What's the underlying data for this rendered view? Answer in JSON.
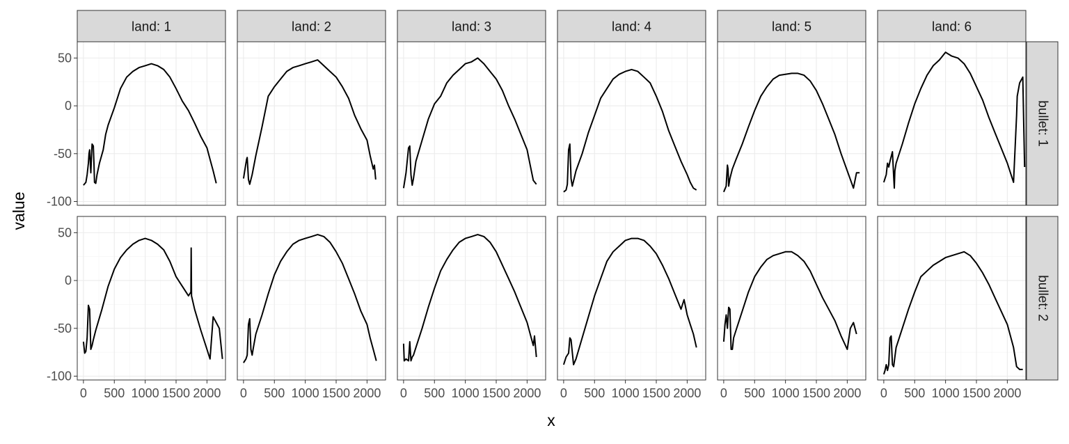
{
  "chart_data": {
    "type": "line",
    "facet": {
      "cols": [
        "land: 1",
        "land: 2",
        "land: 3",
        "land: 4",
        "land: 5",
        "land: 6"
      ],
      "rows": [
        "bullet: 1",
        "bullet: 2"
      ]
    },
    "xlabel": "x",
    "ylabel": "value",
    "xticks": [
      0,
      500,
      1000,
      1500,
      2000
    ],
    "xtick_labels": [
      "0",
      "500",
      "1000",
      "1500",
      "2000"
    ],
    "yticks": [
      -100,
      -50,
      0,
      50
    ],
    "ytick_labels": [
      "-100",
      "-50",
      "0",
      "50"
    ],
    "xlim": [
      -100,
      2300
    ],
    "ylim": [
      -104,
      67
    ],
    "grid": true,
    "panels": [
      {
        "row": 0,
        "col": 0,
        "x": [
          0,
          40,
          60,
          80,
          90,
          100,
          120,
          140,
          160,
          170,
          180,
          200,
          220,
          260,
          320,
          360,
          400,
          500,
          600,
          700,
          800,
          900,
          1000,
          1100,
          1200,
          1300,
          1400,
          1500,
          1600,
          1700,
          1800,
          1900,
          2000,
          2050,
          2100,
          2150
        ],
        "y": [
          -83,
          -80,
          -72,
          -60,
          -50,
          -46,
          -70,
          -40,
          -42,
          -60,
          -80,
          -81,
          -72,
          -60,
          -46,
          -30,
          -20,
          -2,
          18,
          30,
          36,
          40,
          42,
          44,
          42,
          38,
          30,
          18,
          5,
          -5,
          -18,
          -32,
          -44,
          -56,
          -68,
          -81
        ]
      },
      {
        "row": 0,
        "col": 1,
        "x": [
          0,
          40,
          50,
          60,
          80,
          100,
          140,
          200,
          300,
          400,
          500,
          600,
          700,
          800,
          900,
          1000,
          1100,
          1200,
          1300,
          1400,
          1500,
          1600,
          1700,
          1800,
          1900,
          2000,
          2050,
          2100,
          2120,
          2140
        ],
        "y": [
          -76,
          -60,
          -56,
          -54,
          -77,
          -82,
          -72,
          -52,
          -22,
          10,
          20,
          28,
          36,
          40,
          42,
          44,
          46,
          48,
          42,
          36,
          30,
          20,
          8,
          -10,
          -24,
          -36,
          -52,
          -66,
          -62,
          -77
        ]
      },
      {
        "row": 0,
        "col": 2,
        "x": [
          0,
          40,
          80,
          100,
          120,
          140,
          160,
          200,
          300,
          400,
          500,
          600,
          700,
          800,
          900,
          1000,
          1100,
          1200,
          1300,
          1400,
          1500,
          1600,
          1700,
          1800,
          1900,
          2000,
          2050,
          2100,
          2150
        ],
        "y": [
          -86,
          -70,
          -44,
          -42,
          -72,
          -83,
          -76,
          -58,
          -36,
          -14,
          2,
          10,
          24,
          32,
          38,
          44,
          46,
          50,
          44,
          36,
          28,
          16,
          0,
          -14,
          -30,
          -46,
          -62,
          -78,
          -82
        ]
      },
      {
        "row": 0,
        "col": 3,
        "x": [
          0,
          40,
          60,
          80,
          100,
          120,
          140,
          200,
          300,
          400,
          500,
          600,
          700,
          800,
          900,
          1000,
          1100,
          1200,
          1300,
          1400,
          1500,
          1600,
          1700,
          1800,
          1900,
          2000,
          2050,
          2100,
          2150
        ],
        "y": [
          -90,
          -88,
          -82,
          -46,
          -40,
          -76,
          -84,
          -68,
          -50,
          -28,
          -10,
          8,
          18,
          28,
          33,
          36,
          38,
          36,
          30,
          24,
          10,
          -6,
          -26,
          -42,
          -58,
          -72,
          -80,
          -86,
          -88
        ]
      },
      {
        "row": 0,
        "col": 4,
        "x": [
          0,
          40,
          60,
          70,
          80,
          100,
          140,
          200,
          300,
          400,
          500,
          600,
          700,
          800,
          900,
          1000,
          1100,
          1200,
          1300,
          1400,
          1500,
          1600,
          1700,
          1800,
          1900,
          2000,
          2100,
          2150,
          2200
        ],
        "y": [
          -90,
          -84,
          -62,
          -66,
          -84,
          -76,
          -66,
          -56,
          -40,
          -22,
          -5,
          10,
          20,
          28,
          32,
          33,
          34,
          34,
          32,
          26,
          16,
          2,
          -14,
          -30,
          -50,
          -68,
          -86,
          -70,
          -70
        ]
      },
      {
        "row": 0,
        "col": 5,
        "x": [
          0,
          40,
          60,
          80,
          100,
          140,
          160,
          170,
          180,
          200,
          300,
          400,
          500,
          600,
          700,
          800,
          900,
          1000,
          1100,
          1200,
          1300,
          1400,
          1500,
          1600,
          1700,
          1800,
          1900,
          2000,
          2100,
          2150,
          2160,
          2200,
          2250,
          2280
        ],
        "y": [
          -80,
          -72,
          -60,
          -64,
          -58,
          -48,
          -74,
          -86,
          -68,
          -60,
          -40,
          -18,
          2,
          18,
          32,
          42,
          48,
          56,
          52,
          50,
          44,
          34,
          20,
          6,
          -12,
          -28,
          -44,
          -60,
          -80,
          -10,
          10,
          24,
          30,
          -64
        ]
      },
      {
        "row": 1,
        "col": 0,
        "x": [
          0,
          20,
          40,
          60,
          80,
          100,
          120,
          140,
          160,
          200,
          300,
          400,
          500,
          600,
          700,
          800,
          900,
          1000,
          1100,
          1200,
          1300,
          1400,
          1500,
          1600,
          1700,
          1740,
          1745,
          1750,
          1800,
          1900,
          2000,
          2050,
          2100,
          2150,
          2200,
          2250
        ],
        "y": [
          -64,
          -76,
          -74,
          -60,
          -26,
          -30,
          -72,
          -68,
          -62,
          -52,
          -30,
          -6,
          12,
          24,
          32,
          38,
          42,
          44,
          42,
          38,
          32,
          20,
          4,
          -6,
          -16,
          -12,
          34,
          -16,
          -30,
          -52,
          -72,
          -82,
          -38,
          -44,
          -50,
          -82
        ]
      },
      {
        "row": 1,
        "col": 1,
        "x": [
          0,
          40,
          60,
          80,
          100,
          120,
          140,
          160,
          200,
          300,
          400,
          500,
          600,
          700,
          800,
          900,
          1000,
          1100,
          1200,
          1300,
          1400,
          1500,
          1600,
          1700,
          1800,
          1900,
          2000,
          2050,
          2100,
          2150
        ],
        "y": [
          -86,
          -82,
          -78,
          -46,
          -40,
          -72,
          -78,
          -70,
          -56,
          -36,
          -14,
          6,
          20,
          30,
          38,
          42,
          44,
          46,
          48,
          46,
          40,
          30,
          18,
          2,
          -14,
          -32,
          -46,
          -60,
          -72,
          -84
        ]
      },
      {
        "row": 1,
        "col": 2,
        "x": [
          0,
          10,
          40,
          80,
          100,
          120,
          140,
          160,
          200,
          300,
          400,
          500,
          600,
          700,
          800,
          900,
          1000,
          1100,
          1200,
          1300,
          1400,
          1500,
          1600,
          1700,
          1800,
          1900,
          2000,
          2050,
          2100,
          2120,
          2150
        ],
        "y": [
          -66,
          -84,
          -82,
          -84,
          -64,
          -84,
          -80,
          -78,
          -70,
          -50,
          -28,
          -8,
          10,
          22,
          32,
          40,
          44,
          46,
          48,
          46,
          40,
          30,
          16,
          2,
          -12,
          -28,
          -44,
          -56,
          -68,
          -58,
          -80
        ]
      },
      {
        "row": 1,
        "col": 3,
        "x": [
          0,
          40,
          80,
          100,
          120,
          160,
          200,
          300,
          400,
          500,
          600,
          700,
          800,
          900,
          1000,
          1100,
          1200,
          1300,
          1400,
          1500,
          1600,
          1700,
          1800,
          1900,
          1950,
          2000,
          2050,
          2100,
          2150
        ],
        "y": [
          -88,
          -80,
          -76,
          -60,
          -62,
          -88,
          -82,
          -60,
          -38,
          -16,
          2,
          20,
          30,
          36,
          42,
          44,
          44,
          42,
          36,
          28,
          16,
          2,
          -14,
          -30,
          -20,
          -36,
          -46,
          -56,
          -70
        ]
      },
      {
        "row": 1,
        "col": 4,
        "x": [
          0,
          20,
          40,
          60,
          80,
          100,
          120,
          140,
          160,
          200,
          300,
          400,
          500,
          600,
          700,
          800,
          900,
          1000,
          1100,
          1200,
          1300,
          1400,
          1500,
          1600,
          1700,
          1800,
          1900,
          2000,
          2050,
          2100,
          2150
        ],
        "y": [
          -64,
          -46,
          -36,
          -50,
          -28,
          -30,
          -72,
          -72,
          -60,
          -52,
          -32,
          -12,
          4,
          14,
          22,
          26,
          28,
          30,
          30,
          26,
          20,
          10,
          -4,
          -18,
          -30,
          -42,
          -58,
          -72,
          -50,
          -44,
          -56
        ]
      },
      {
        "row": 1,
        "col": 5,
        "x": [
          0,
          20,
          40,
          60,
          80,
          100,
          120,
          140,
          160,
          180,
          200,
          300,
          400,
          500,
          600,
          700,
          800,
          900,
          1000,
          1100,
          1200,
          1300,
          1400,
          1500,
          1600,
          1700,
          1800,
          1900,
          2000,
          2100,
          2150,
          2200,
          2250
        ],
        "y": [
          -98,
          -94,
          -88,
          -94,
          -88,
          -60,
          -58,
          -88,
          -90,
          -80,
          -70,
          -50,
          -30,
          -12,
          4,
          10,
          16,
          20,
          24,
          26,
          28,
          30,
          26,
          18,
          8,
          -4,
          -18,
          -32,
          -46,
          -70,
          -90,
          -93,
          -93
        ]
      }
    ]
  }
}
